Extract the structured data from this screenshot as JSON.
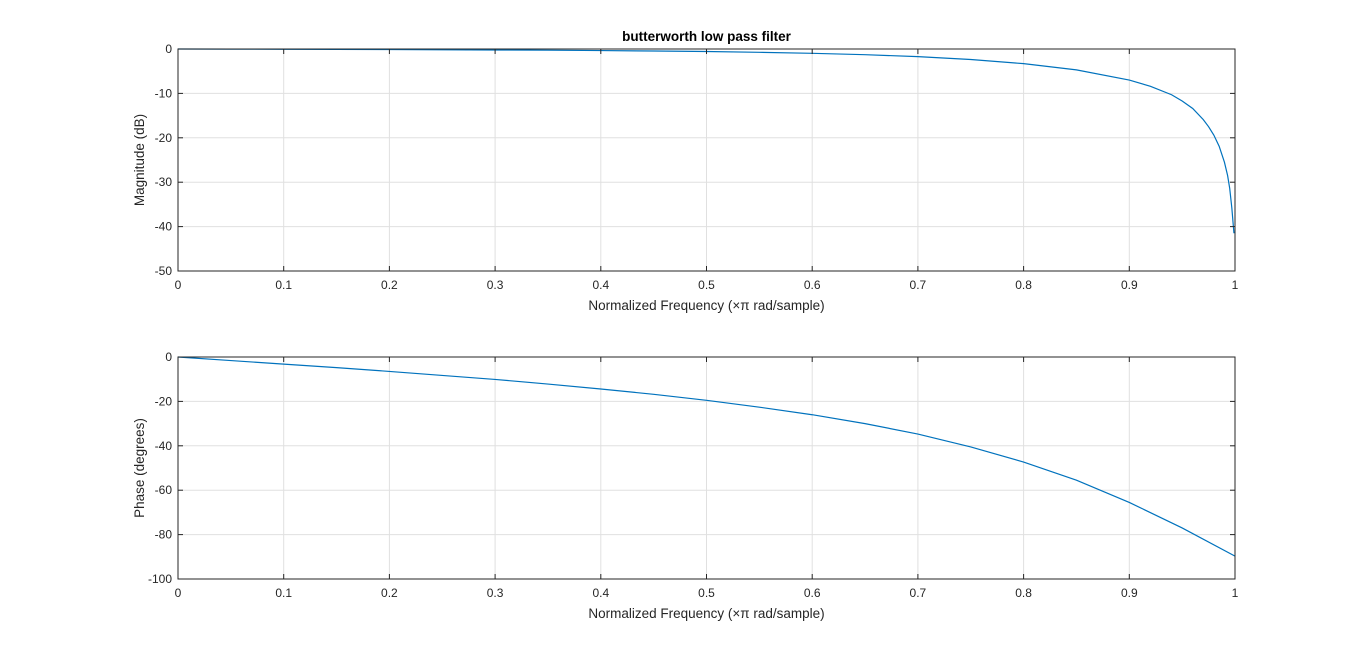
{
  "colors": {
    "series": "#0072bd",
    "axes": "#262626",
    "grid": "#e0e0e0",
    "background": "#ffffff"
  },
  "chart_data": [
    {
      "type": "line",
      "title": "butterworth low pass filter",
      "xlabel": "Normalized Frequency  (×π rad/sample)",
      "ylabel": "Magnitude (dB)",
      "xlim": [
        0,
        1
      ],
      "ylim": [
        -50,
        0
      ],
      "xticks": [
        0,
        0.1,
        0.2,
        0.3,
        0.4,
        0.5,
        0.6,
        0.7,
        0.8,
        0.9,
        1
      ],
      "xtick_labels": [
        "0",
        "0.1",
        "0.2",
        "0.3",
        "0.4",
        "0.5",
        "0.6",
        "0.7",
        "0.8",
        "0.9",
        "1"
      ],
      "yticks": [
        -50,
        -40,
        -30,
        -20,
        -10,
        0
      ],
      "ytick_labels": [
        "-50",
        "-40",
        "-30",
        "-20",
        "-10",
        "0"
      ],
      "grid": true,
      "series": [
        {
          "x": [
            0,
            0.05,
            0.1,
            0.15,
            0.2,
            0.25,
            0.3,
            0.35,
            0.4,
            0.45,
            0.5,
            0.55,
            0.6,
            0.65,
            0.7,
            0.75,
            0.8,
            0.85,
            0.9,
            0.92,
            0.94,
            0.95,
            0.96,
            0.97,
            0.975,
            0.98,
            0.985,
            0.99,
            0.993,
            0.995,
            0.997,
            0.999
          ],
          "values": [
            0,
            -0.03,
            -0.06,
            -0.1,
            -0.13,
            -0.17,
            -0.22,
            -0.27,
            -0.35,
            -0.45,
            -0.57,
            -0.75,
            -0.97,
            -1.28,
            -1.72,
            -2.36,
            -3.3,
            -4.7,
            -7.0,
            -8.4,
            -10.3,
            -11.7,
            -13.4,
            -15.9,
            -17.5,
            -19.4,
            -21.9,
            -25.5,
            -28.5,
            -31.4,
            -35.8,
            -41.5
          ]
        }
      ]
    },
    {
      "type": "line",
      "title": "",
      "xlabel": "Normalized Frequency  (×π rad/sample)",
      "ylabel": "Phase (degrees)",
      "xlim": [
        0,
        1
      ],
      "ylim": [
        -100,
        0
      ],
      "xticks": [
        0,
        0.1,
        0.2,
        0.3,
        0.4,
        0.5,
        0.6,
        0.7,
        0.8,
        0.9,
        1
      ],
      "xtick_labels": [
        "0",
        "0.1",
        "0.2",
        "0.3",
        "0.4",
        "0.5",
        "0.6",
        "0.7",
        "0.8",
        "0.9",
        "1"
      ],
      "yticks": [
        -100,
        -80,
        -60,
        -40,
        -20,
        0
      ],
      "ytick_labels": [
        "-100",
        "-80",
        "-60",
        "-40",
        "-20",
        "0"
      ],
      "grid": true,
      "series": [
        {
          "x": [
            0,
            0.05,
            0.1,
            0.15,
            0.2,
            0.25,
            0.3,
            0.35,
            0.4,
            0.45,
            0.5,
            0.55,
            0.6,
            0.65,
            0.7,
            0.75,
            0.8,
            0.85,
            0.9,
            0.95,
            1
          ],
          "values": [
            0,
            -1.6,
            -3.2,
            -4.8,
            -6.5,
            -8.3,
            -10.1,
            -12.2,
            -14.4,
            -16.8,
            -19.5,
            -22.6,
            -26.0,
            -30.0,
            -34.7,
            -40.5,
            -47.3,
            -55.5,
            -65.5,
            -77.0,
            -89.7
          ]
        }
      ]
    }
  ]
}
